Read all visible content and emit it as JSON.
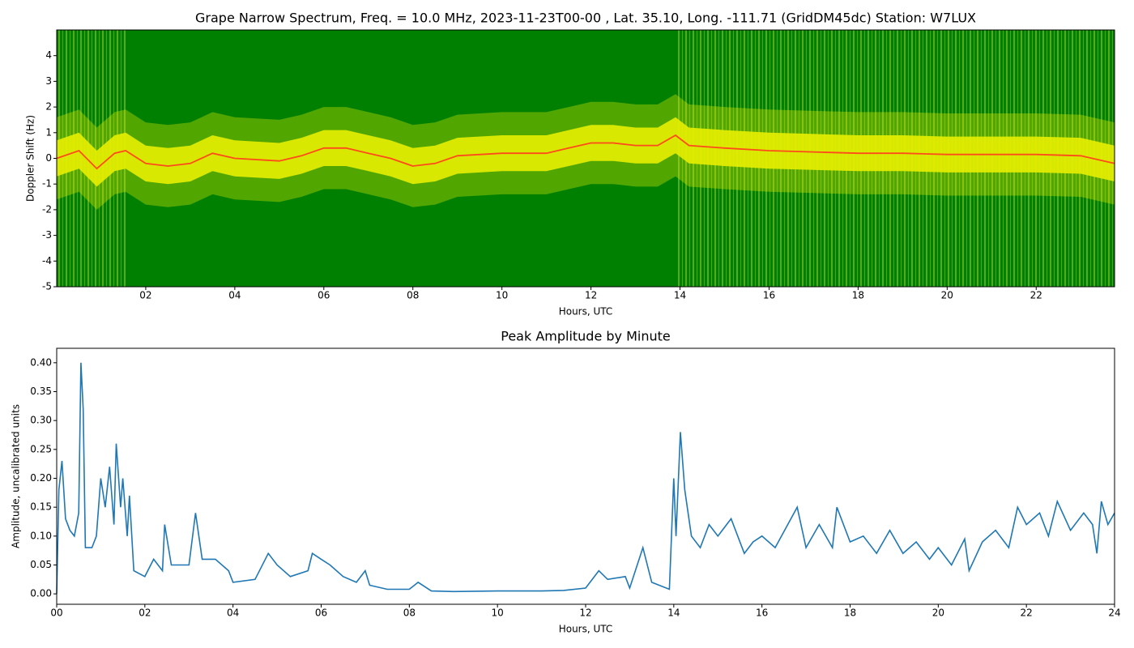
{
  "chart_data": [
    {
      "type": "spectrogram",
      "title": "Grape Narrow Spectrum, Freq. = 10.0 MHz, 2023-11-23T00-00 , Lat.  35.10, Long. -111.71 (GridDM45dc) Station: W7LUX",
      "xlabel": "Hours, UTC",
      "ylabel": "Doppler Shift (Hz)",
      "background_color": "#008000",
      "band_color": "#e8f000",
      "color": "#ff4a1a",
      "x": [
        0,
        0.5,
        0.9,
        1.3,
        1.55,
        2,
        2.5,
        3,
        3.5,
        4,
        5,
        5.5,
        6,
        6.5,
        7,
        7.5,
        8,
        8.5,
        9,
        10,
        11,
        11.5,
        12,
        12.5,
        13,
        13.5,
        13.9,
        14.2,
        15,
        16,
        17,
        18,
        19,
        20,
        21,
        22,
        23,
        23.76
      ],
      "values": [
        0,
        0.3,
        -0.4,
        0.2,
        0.3,
        -0.2,
        -0.3,
        -0.2,
        0.2,
        0,
        -0.1,
        0.1,
        0.4,
        0.4,
        0.2,
        0,
        -0.3,
        -0.2,
        0.1,
        0.2,
        0.2,
        0.4,
        0.6,
        0.6,
        0.5,
        0.5,
        0.9,
        0.5,
        0.4,
        0.3,
        0.25,
        0.2,
        0.2,
        0.15,
        0.15,
        0.15,
        0.1,
        -0.2
      ],
      "xlim": [
        0,
        23.76
      ],
      "ylim": [
        -5,
        5
      ],
      "xticks": [
        {
          "value": 2,
          "label": "02"
        },
        {
          "value": 4,
          "label": "04"
        },
        {
          "value": 6,
          "label": "06"
        },
        {
          "value": 8,
          "label": "08"
        },
        {
          "value": 10,
          "label": "10"
        },
        {
          "value": 12,
          "label": "12"
        },
        {
          "value": 14,
          "label": "14"
        },
        {
          "value": 16,
          "label": "16"
        },
        {
          "value": 18,
          "label": "18"
        },
        {
          "value": 20,
          "label": "20"
        },
        {
          "value": 22,
          "label": "22"
        }
      ],
      "yticks": [
        -5,
        -4,
        -3,
        -2,
        -1,
        0,
        1,
        2,
        3,
        4
      ]
    },
    {
      "type": "line",
      "title": "Peak Amplitude by Minute",
      "xlabel": "Hours, UTC",
      "ylabel": "Amplitude, uncalibrated units",
      "color": "#1f77b4",
      "x": [
        0,
        0.05,
        0.12,
        0.2,
        0.3,
        0.4,
        0.5,
        0.55,
        0.6,
        0.65,
        0.8,
        0.9,
        1.0,
        1.1,
        1.2,
        1.3,
        1.35,
        1.45,
        1.5,
        1.6,
        1.65,
        1.75,
        2.0,
        2.2,
        2.4,
        2.45,
        2.6,
        3.0,
        3.15,
        3.3,
        3.6,
        3.9,
        4.0,
        4.5,
        4.8,
        5.0,
        5.3,
        5.7,
        5.8,
        6.0,
        6.2,
        6.5,
        6.8,
        7.0,
        7.1,
        7.5,
        8.0,
        8.2,
        8.5,
        9,
        10,
        11,
        11.5,
        12,
        12.3,
        12.5,
        12.9,
        13.0,
        13.3,
        13.5,
        13.9,
        14.0,
        14.05,
        14.15,
        14.25,
        14.4,
        14.6,
        14.8,
        15.0,
        15.3,
        15.6,
        15.8,
        16.0,
        16.3,
        16.8,
        17.0,
        17.3,
        17.6,
        17.7,
        18.0,
        18.3,
        18.6,
        18.9,
        19.2,
        19.5,
        19.8,
        20.0,
        20.3,
        20.6,
        20.7,
        21.0,
        21.3,
        21.6,
        21.8,
        22.0,
        22.3,
        22.5,
        22.7,
        23.0,
        23.3,
        23.5,
        23.6,
        23.7,
        23.85,
        24.0
      ],
      "values": [
        0.0,
        0.18,
        0.23,
        0.13,
        0.11,
        0.1,
        0.14,
        0.4,
        0.32,
        0.08,
        0.08,
        0.1,
        0.2,
        0.15,
        0.22,
        0.12,
        0.26,
        0.15,
        0.2,
        0.1,
        0.17,
        0.04,
        0.03,
        0.06,
        0.04,
        0.12,
        0.05,
        0.05,
        0.14,
        0.06,
        0.06,
        0.04,
        0.02,
        0.025,
        0.07,
        0.05,
        0.03,
        0.04,
        0.07,
        0.06,
        0.05,
        0.03,
        0.02,
        0.04,
        0.015,
        0.008,
        0.008,
        0.02,
        0.005,
        0.004,
        0.005,
        0.005,
        0.006,
        0.01,
        0.04,
        0.025,
        0.03,
        0.01,
        0.08,
        0.02,
        0.008,
        0.2,
        0.1,
        0.28,
        0.18,
        0.1,
        0.08,
        0.12,
        0.1,
        0.13,
        0.07,
        0.09,
        0.1,
        0.08,
        0.15,
        0.08,
        0.12,
        0.08,
        0.15,
        0.09,
        0.1,
        0.07,
        0.11,
        0.07,
        0.09,
        0.06,
        0.08,
        0.05,
        0.095,
        0.04,
        0.09,
        0.11,
        0.08,
        0.15,
        0.12,
        0.14,
        0.1,
        0.16,
        0.11,
        0.14,
        0.12,
        0.07,
        0.16,
        0.12,
        0.14
      ],
      "xlim": [
        0,
        24
      ],
      "ylim": [
        -0.018,
        0.425
      ],
      "xticks": [
        {
          "value": 0,
          "label": "00"
        },
        {
          "value": 2,
          "label": "02"
        },
        {
          "value": 4,
          "label": "04"
        },
        {
          "value": 6,
          "label": "06"
        },
        {
          "value": 8,
          "label": "08"
        },
        {
          "value": 10,
          "label": "10"
        },
        {
          "value": 12,
          "label": "12"
        },
        {
          "value": 14,
          "label": "14"
        },
        {
          "value": 16,
          "label": "16"
        },
        {
          "value": 18,
          "label": "18"
        },
        {
          "value": 20,
          "label": "20"
        },
        {
          "value": 22,
          "label": "22"
        },
        {
          "value": 24,
          "label": "24"
        }
      ],
      "yticks": [
        {
          "value": 0,
          "label": "0.00"
        },
        0.05,
        {
          "value": 0.1,
          "label": "0.10"
        },
        0.15,
        {
          "value": 0.2,
          "label": "0.20"
        },
        0.25,
        {
          "value": 0.3,
          "label": "0.30"
        },
        0.35,
        {
          "value": 0.4,
          "label": "0.40"
        }
      ]
    }
  ]
}
